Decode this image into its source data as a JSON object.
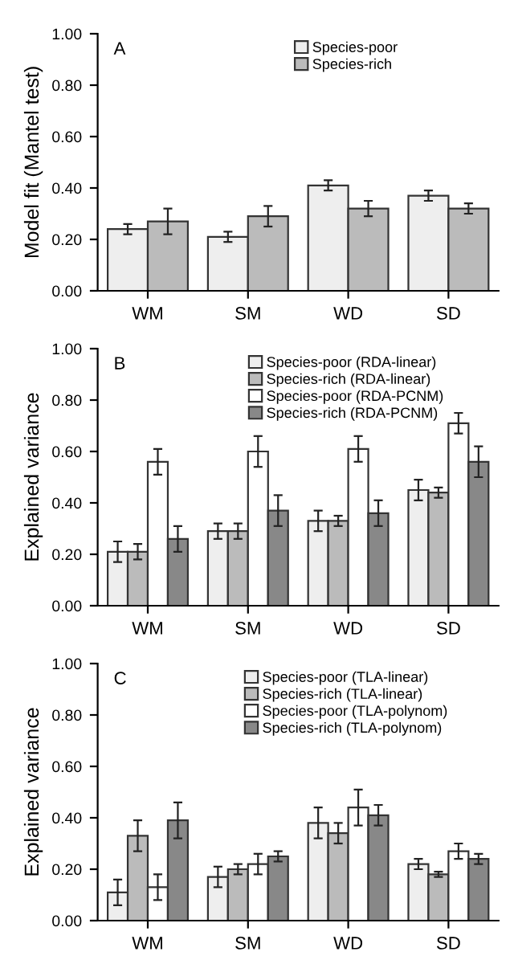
{
  "chart_data": [
    {
      "type": "bar",
      "ylabel": "Model fit (Mantel test)",
      "annotations": [
        "A"
      ],
      "categories": [
        "WM",
        "SM",
        "WD",
        "SD"
      ],
      "ylim": [
        0,
        1
      ],
      "yticks": [
        {
          "value": 0,
          "label": "0.00"
        },
        {
          "value": 0.2,
          "label": "0.20"
        },
        {
          "value": 0.4,
          "label": "0.40"
        },
        {
          "value": 0.6,
          "label": "0.60"
        },
        {
          "value": 0.8,
          "label": "0.80"
        },
        {
          "value": 1,
          "label": "1.00"
        }
      ],
      "legend": "top",
      "series": [
        {
          "name": "Species-poor",
          "color": "#eeeeee",
          "values": [
            0.24,
            0.21,
            0.41,
            0.37
          ],
          "errors": [
            0.02,
            0.02,
            0.02,
            0.02
          ]
        },
        {
          "name": "Species-rich",
          "color": "#bbbbbb",
          "values": [
            0.27,
            0.29,
            0.32,
            0.32
          ],
          "errors": [
            0.05,
            0.04,
            0.03,
            0.02
          ]
        }
      ]
    },
    {
      "type": "bar",
      "ylabel": "Explained variance",
      "annotations": [
        "B"
      ],
      "categories": [
        "WM",
        "SM",
        "WD",
        "SD"
      ],
      "ylim": [
        0,
        1
      ],
      "yticks": [
        {
          "value": 0,
          "label": "0.00"
        },
        {
          "value": 0.2,
          "label": "0.20"
        },
        {
          "value": 0.4,
          "label": "0.40"
        },
        {
          "value": 0.6,
          "label": "0.60"
        },
        {
          "value": 0.8,
          "label": "0.80"
        },
        {
          "value": 1,
          "label": "1.00"
        }
      ],
      "legend": "top",
      "series": [
        {
          "name": "Species-poor (RDA-linear)",
          "color": "#eeeeee",
          "values": [
            0.21,
            0.29,
            0.33,
            0.45
          ],
          "errors": [
            0.04,
            0.03,
            0.04,
            0.04
          ]
        },
        {
          "name": "Species-rich (RDA-linear)",
          "color": "#bbbbbb",
          "values": [
            0.21,
            0.29,
            0.33,
            0.44
          ],
          "errors": [
            0.03,
            0.03,
            0.02,
            0.02
          ]
        },
        {
          "name": "Species-poor (RDA-PCNM)",
          "color": "#ffffff",
          "values": [
            0.56,
            0.6,
            0.61,
            0.71
          ],
          "errors": [
            0.05,
            0.06,
            0.05,
            0.04
          ]
        },
        {
          "name": "Species-rich (RDA-PCNM)",
          "color": "#888888",
          "values": [
            0.26,
            0.37,
            0.36,
            0.56
          ],
          "errors": [
            0.05,
            0.06,
            0.05,
            0.06
          ]
        }
      ]
    },
    {
      "type": "bar",
      "ylabel": "Explained variance",
      "annotations": [
        "C"
      ],
      "categories": [
        "WM",
        "SM",
        "WD",
        "SD"
      ],
      "ylim": [
        0,
        1
      ],
      "yticks": [
        {
          "value": 0,
          "label": "0.00"
        },
        {
          "value": 0.2,
          "label": "0.20"
        },
        {
          "value": 0.4,
          "label": "0.40"
        },
        {
          "value": 0.6,
          "label": "0.60"
        },
        {
          "value": 0.8,
          "label": "0.80"
        },
        {
          "value": 1,
          "label": "1.00"
        }
      ],
      "legend": "top",
      "series": [
        {
          "name": "Species-poor (TLA-linear)",
          "color": "#eeeeee",
          "values": [
            0.11,
            0.17,
            0.38,
            0.22
          ],
          "errors": [
            0.05,
            0.04,
            0.06,
            0.02
          ]
        },
        {
          "name": "Species-rich (TLA-linear)",
          "color": "#bbbbbb",
          "values": [
            0.33,
            0.2,
            0.34,
            0.18
          ],
          "errors": [
            0.06,
            0.02,
            0.04,
            0.01
          ]
        },
        {
          "name": "Species-poor (TLA-polynom)",
          "color": "#ffffff",
          "values": [
            0.13,
            0.22,
            0.44,
            0.27
          ],
          "errors": [
            0.05,
            0.04,
            0.07,
            0.03
          ]
        },
        {
          "name": "Species-rich (TLA-polynom)",
          "color": "#888888",
          "values": [
            0.39,
            0.25,
            0.41,
            0.24
          ],
          "errors": [
            0.07,
            0.02,
            0.04,
            0.02
          ]
        }
      ]
    }
  ]
}
